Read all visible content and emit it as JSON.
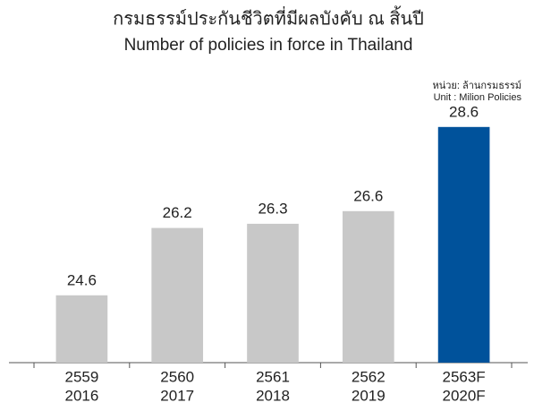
{
  "chart_data": {
    "type": "bar",
    "title": "กรมธรรม์ประกันชีวิตที่มีผลบังคับ ณ สิ้นปี",
    "subtitle": "Number of policies in force in Thailand",
    "unit_label": [
      "หน่วย: ล้านกรมธรรม์",
      "Unit : Milion Policies"
    ],
    "categories": [
      [
        "2559",
        "2016"
      ],
      [
        "2560",
        "2017"
      ],
      [
        "2561",
        "2018"
      ],
      [
        "2562",
        "2019"
      ],
      [
        "2563F",
        "2020F"
      ]
    ],
    "values": [
      24.6,
      26.2,
      26.3,
      26.6,
      28.6
    ],
    "colors": [
      "#c8c8c8",
      "#c8c8c8",
      "#c8c8c8",
      "#c8c8c8",
      "#00529b"
    ],
    "ylim": [
      23,
      29
    ]
  }
}
